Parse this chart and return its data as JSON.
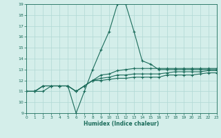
{
  "xlabel": "Humidex (Indice chaleur)",
  "background_color": "#d4eeea",
  "grid_color": "#b0d8d4",
  "line_color": "#1a6b5a",
  "xlim": [
    0,
    23
  ],
  "ylim": [
    9,
    19
  ],
  "yticks": [
    9,
    10,
    11,
    12,
    13,
    14,
    15,
    16,
    17,
    18,
    19
  ],
  "xtick_vals": [
    0,
    1,
    2,
    3,
    4,
    5,
    6,
    7,
    8,
    9,
    10,
    11,
    12,
    13,
    14,
    15,
    16,
    17,
    18,
    19,
    20,
    21,
    22,
    23
  ],
  "xtick_labels": [
    "0",
    "1",
    "2",
    "3",
    "4",
    "5",
    "6",
    "7",
    "8",
    "9",
    "10",
    "11",
    "12",
    "13",
    "14",
    "15",
    "16",
    "17",
    "18",
    "19",
    "20",
    "21",
    "22",
    "23"
  ],
  "lines": [
    [
      11,
      11,
      11,
      11.5,
      11.5,
      11.5,
      9,
      11,
      13,
      14.8,
      16.5,
      19,
      19,
      16.5,
      13.8,
      13.5,
      13,
      13,
      13,
      13,
      13,
      13,
      13,
      13
    ],
    [
      11,
      11,
      11.5,
      11.5,
      11.5,
      11.5,
      11,
      11.5,
      12,
      12.5,
      12.6,
      12.9,
      13,
      13.1,
      13.1,
      13.1,
      13.1,
      13.1,
      13.1,
      13.1,
      13.1,
      13.1,
      13.1,
      13.1
    ],
    [
      11,
      11,
      11.5,
      11.5,
      11.5,
      11.5,
      11,
      11.5,
      12,
      12.2,
      12.3,
      12.5,
      12.5,
      12.6,
      12.6,
      12.6,
      12.6,
      12.7,
      12.8,
      12.8,
      12.8,
      12.8,
      12.9,
      12.9
    ],
    [
      11,
      11,
      11.5,
      11.5,
      11.5,
      11.5,
      11,
      11.5,
      12,
      12.0,
      12.1,
      12.2,
      12.2,
      12.3,
      12.3,
      12.3,
      12.3,
      12.5,
      12.5,
      12.5,
      12.5,
      12.6,
      12.7,
      12.7
    ]
  ]
}
